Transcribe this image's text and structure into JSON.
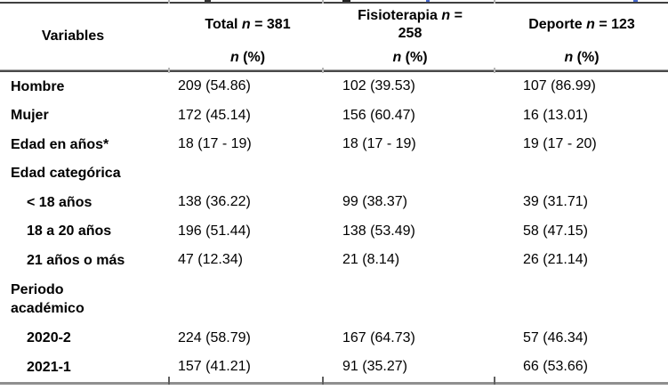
{
  "table": {
    "header": {
      "variables_label": "Variables",
      "columns": [
        {
          "title_prefix": "Total",
          "title_n": "n",
          "title_suffix": "= 381",
          "sub_n": "n",
          "sub_pct": "(%)"
        },
        {
          "title_prefix": "Fisioterapia",
          "title_n": "n",
          "title_suffix": "= 258",
          "sub_n": "n",
          "sub_pct": "(%)"
        },
        {
          "title_prefix": "Deporte",
          "title_n": "n",
          "title_suffix": "= 123",
          "sub_n": "n",
          "sub_pct": "(%)"
        }
      ]
    },
    "rows": [
      {
        "label": "Hombre",
        "indent": false,
        "section": false,
        "wrap": false,
        "values": [
          "209 (54.86)",
          "102 (39.53)",
          "107 (86.99)"
        ]
      },
      {
        "label": "Mujer",
        "indent": false,
        "section": false,
        "wrap": false,
        "values": [
          "172 (45.14)",
          "156 (60.47)",
          "16 (13.01)"
        ]
      },
      {
        "label": "Edad en años*",
        "indent": false,
        "section": false,
        "wrap": false,
        "values": [
          "18 (17 - 19)",
          "18 (17 - 19)",
          "19 (17 - 20)"
        ]
      },
      {
        "label": "Edad categórica",
        "indent": false,
        "section": true,
        "wrap": false,
        "values": [
          "",
          "",
          ""
        ]
      },
      {
        "label": "< 18 años",
        "indent": true,
        "section": false,
        "wrap": false,
        "values": [
          "138 (36.22)",
          "99 (38.37)",
          "39 (31.71)"
        ]
      },
      {
        "label": "18 a 20 años",
        "indent": true,
        "section": false,
        "wrap": false,
        "values": [
          "196 (51.44)",
          "138 (53.49)",
          "58 (47.15)"
        ]
      },
      {
        "label": "21 años o más",
        "indent": true,
        "section": false,
        "wrap": false,
        "values": [
          "47 (12.34)",
          "21 (8.14)",
          "26 (21.14)"
        ]
      },
      {
        "label": "Periodo académico",
        "indent": false,
        "section": true,
        "wrap": true,
        "values": [
          "",
          "",
          ""
        ]
      },
      {
        "label": "2020-2",
        "indent": true,
        "section": false,
        "wrap": false,
        "values": [
          "224 (58.79)",
          "167 (64.73)",
          "57 (46.34)"
        ]
      },
      {
        "label": "2021-1",
        "indent": true,
        "section": false,
        "wrap": false,
        "values": [
          "157 (41.21)",
          "91 (35.27)",
          "66 (53.66)"
        ]
      }
    ],
    "colors": {
      "text": "#000000",
      "background": "#ffffff",
      "rule_top": "#3f3f3f",
      "rule_mid": "#4a4a4a",
      "rule_bottom": "#8f8f8f",
      "tick_light": "#b5b5b5",
      "tick_dark": "#606060"
    }
  }
}
